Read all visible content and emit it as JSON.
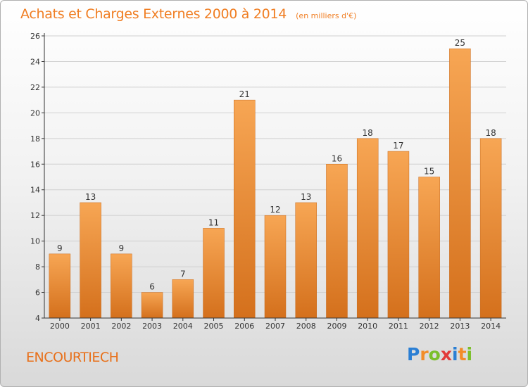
{
  "title": "Achats et Charges Externes 2000 à 2014",
  "unit": "(en milliers d'€)",
  "place": "ENCOURTIECH",
  "logo": {
    "text": "Proxiti",
    "letters": [
      {
        "char": "P",
        "color": "#2b7fd4"
      },
      {
        "char": "r",
        "color": "#f28c28"
      },
      {
        "char": "o",
        "color": "#7bbf2a"
      },
      {
        "char": "x",
        "color": "#e23b3b"
      },
      {
        "char": "i",
        "color": "#2b7fd4"
      },
      {
        "char": "t",
        "color": "#f28c28"
      },
      {
        "char": "i",
        "color": "#7bbf2a"
      }
    ]
  },
  "colors": {
    "bar_top": "#f7a654",
    "bar_bottom": "#d4701c",
    "bar_stroke": "#c86a1c",
    "axis": "#333333",
    "grid": "#d0d0d0",
    "title": "#f07e23"
  },
  "chart_data": {
    "type": "bar",
    "categories": [
      "2000",
      "2001",
      "2002",
      "2003",
      "2004",
      "2005",
      "2006",
      "2007",
      "2008",
      "2009",
      "2010",
      "2011",
      "2012",
      "2013",
      "2014"
    ],
    "values": [
      9,
      13,
      9,
      6,
      7,
      11,
      21,
      12,
      13,
      16,
      18,
      17,
      15,
      25,
      18
    ],
    "ylim": [
      4,
      26
    ],
    "yticks": [
      4,
      6,
      8,
      10,
      12,
      14,
      16,
      18,
      20,
      22,
      24,
      26
    ],
    "grid": true,
    "legend": "none"
  }
}
